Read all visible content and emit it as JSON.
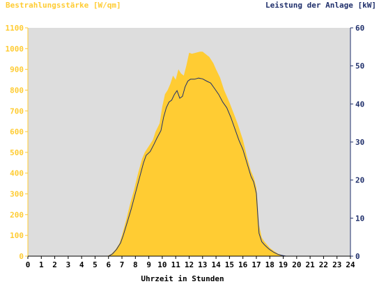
{
  "chart_data": {
    "type": "area",
    "left_axis_title": "Bestrahlungsstärke [W/qm]",
    "right_axis_title": "Leistung der Anlage [kW]",
    "xlabel": "Uhrzeit in Stunden",
    "xlim": [
      0,
      24
    ],
    "ylim_left": [
      0,
      1100
    ],
    "ylim_right": [
      0,
      60
    ],
    "x_ticks": [
      "0",
      "1",
      "2",
      "3",
      "4",
      "5",
      "6",
      "7",
      "8",
      "9",
      "10",
      "11",
      "12",
      "13",
      "14",
      "15",
      "16",
      "17",
      "18",
      "19",
      "20",
      "21",
      "22",
      "23",
      "24"
    ],
    "y_left_ticks": [
      "0",
      "100",
      "200",
      "300",
      "400",
      "500",
      "600",
      "700",
      "800",
      "900",
      "1000",
      "1100"
    ],
    "y_right_ticks": [
      "0",
      "10",
      "20",
      "30",
      "40",
      "50",
      "60"
    ],
    "colors": {
      "irradiance_fill": "#ffcc33",
      "power_line": "#1f2f6b",
      "plot_background": "#dddddd",
      "left_axis": "#ffcc33",
      "right_axis": "#1f2f6b"
    },
    "series": [
      {
        "axis": "left",
        "style": "area",
        "x": [
          0,
          5.9,
          6.2,
          6.5,
          6.8,
          7.0,
          7.3,
          7.6,
          7.9,
          8.2,
          8.5,
          8.7,
          9.0,
          9.3,
          9.5,
          9.8,
          10.0,
          10.2,
          10.4,
          10.6,
          10.8,
          11.0,
          11.2,
          11.4,
          11.6,
          11.8,
          12.0,
          12.2,
          12.5,
          12.8,
          13.0,
          13.2,
          13.5,
          13.8,
          14.0,
          14.3,
          14.6,
          15.0,
          15.3,
          15.6,
          16.0,
          16.3,
          16.6,
          16.8,
          17.0,
          17.1,
          17.2,
          17.4,
          17.6,
          17.8,
          18.0,
          18.3,
          18.6,
          18.9,
          19.1,
          19.3,
          24
        ],
        "y": [
          0,
          0,
          10,
          30,
          60,
          100,
          170,
          250,
          320,
          400,
          470,
          500,
          530,
          560,
          600,
          640,
          720,
          780,
          800,
          830,
          870,
          850,
          900,
          880,
          870,
          920,
          980,
          975,
          980,
          985,
          985,
          975,
          960,
          930,
          900,
          860,
          800,
          740,
          690,
          640,
          560,
          480,
          410,
          380,
          330,
          250,
          150,
          90,
          70,
          55,
          40,
          25,
          12,
          5,
          2,
          0,
          0
        ]
      },
      {
        "axis": "right",
        "style": "line",
        "x": [
          0,
          6.0,
          6.3,
          6.6,
          6.9,
          7.1,
          7.4,
          7.7,
          8.0,
          8.3,
          8.6,
          8.8,
          9.1,
          9.4,
          9.6,
          9.9,
          10.1,
          10.3,
          10.5,
          10.7,
          10.9,
          11.1,
          11.3,
          11.5,
          11.7,
          11.9,
          12.1,
          12.4,
          12.7,
          13.0,
          13.3,
          13.6,
          13.9,
          14.2,
          14.5,
          14.8,
          15.1,
          15.4,
          15.7,
          16.0,
          16.3,
          16.6,
          16.8,
          17.0,
          17.1,
          17.2,
          17.4,
          17.6,
          17.8,
          18.0,
          18.3,
          18.6,
          18.9,
          19.2,
          24
        ],
        "y": [
          0,
          0,
          0.6,
          1.8,
          3.5,
          5.5,
          9.0,
          12.5,
          16.5,
          20.5,
          24.5,
          26.5,
          27.5,
          29.5,
          31.0,
          33.0,
          36.5,
          39.0,
          40.5,
          41.0,
          42.5,
          43.5,
          41.5,
          42.0,
          44.5,
          46.0,
          46.5,
          46.5,
          46.8,
          46.6,
          46.0,
          45.5,
          44.0,
          42.5,
          40.5,
          39.0,
          36.5,
          33.5,
          30.5,
          28.0,
          24.5,
          21.0,
          19.5,
          16.5,
          11.0,
          6.0,
          3.8,
          3.0,
          2.3,
          1.7,
          1.0,
          0.5,
          0.2,
          0,
          0
        ]
      }
    ]
  }
}
